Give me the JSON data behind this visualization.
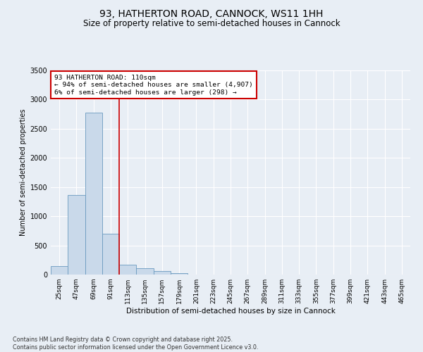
{
  "title": "93, HATHERTON ROAD, CANNOCK, WS11 1HH",
  "subtitle": "Size of property relative to semi-detached houses in Cannock",
  "xlabel": "Distribution of semi-detached houses by size in Cannock",
  "ylabel": "Number of semi-detached properties",
  "categories": [
    "25sqm",
    "47sqm",
    "69sqm",
    "91sqm",
    "113sqm",
    "135sqm",
    "157sqm",
    "179sqm",
    "201sqm",
    "223sqm",
    "245sqm",
    "267sqm",
    "289sqm",
    "311sqm",
    "333sqm",
    "355sqm",
    "377sqm",
    "399sqm",
    "421sqm",
    "443sqm",
    "465sqm"
  ],
  "values": [
    150,
    1360,
    2780,
    700,
    170,
    110,
    55,
    30,
    0,
    0,
    0,
    0,
    0,
    0,
    0,
    0,
    0,
    0,
    0,
    0,
    0
  ],
  "bar_color": "#c9d9ea",
  "bar_edge_color": "#6a9abf",
  "vline_x": 3.5,
  "vline_color": "#cc0000",
  "annotation_text": "93 HATHERTON ROAD: 110sqm\n← 94% of semi-detached houses are smaller (4,907)\n6% of semi-detached houses are larger (298) →",
  "annotation_box_color": "#cc0000",
  "ylim": [
    0,
    3500
  ],
  "yticks": [
    0,
    500,
    1000,
    1500,
    2000,
    2500,
    3000,
    3500
  ],
  "background_color": "#e8eef5",
  "plot_bg_color": "#e8eef5",
  "footer": "Contains HM Land Registry data © Crown copyright and database right 2025.\nContains public sector information licensed under the Open Government Licence v3.0.",
  "title_fontsize": 10,
  "subtitle_fontsize": 8.5,
  "annotation_fontsize": 6.8,
  "footer_fontsize": 5.8,
  "ylabel_fontsize": 7,
  "xlabel_fontsize": 7.5,
  "tick_fontsize": 6.5,
  "ytick_fontsize": 7
}
